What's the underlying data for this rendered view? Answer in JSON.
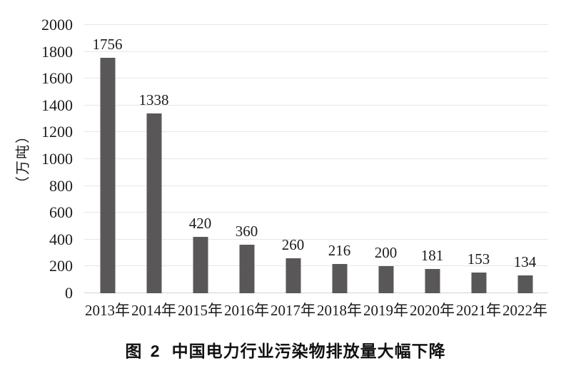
{
  "chart_data": {
    "type": "bar",
    "title": "图 2 中国电力行业污染物排放量大幅下降",
    "categories": [
      "2013年",
      "2014年",
      "2015年",
      "2016年",
      "2017年",
      "2018年",
      "2019年",
      "2020年",
      "2021年",
      "2022年"
    ],
    "values": [
      1756,
      1338,
      420,
      360,
      260,
      216,
      200,
      181,
      153,
      134
    ],
    "data_labels": [
      "1756",
      "1338",
      "420",
      "360",
      "260",
      "216",
      "200",
      "181",
      "153",
      "134"
    ],
    "xlabel": "",
    "ylabel": "（万吨）",
    "ylim": [
      0,
      2000
    ],
    "yticks": [
      0,
      200,
      400,
      600,
      800,
      1000,
      1200,
      1400,
      1600,
      1800,
      2000
    ],
    "grid": true,
    "legend": "none",
    "bar_color": "#595757",
    "gridline_color": "#e7e7e7",
    "baseline_color": "#d2d2d2"
  },
  "caption": {
    "prefix": "图 2",
    "text": "中国电力行业污染物排放量大幅下降"
  }
}
